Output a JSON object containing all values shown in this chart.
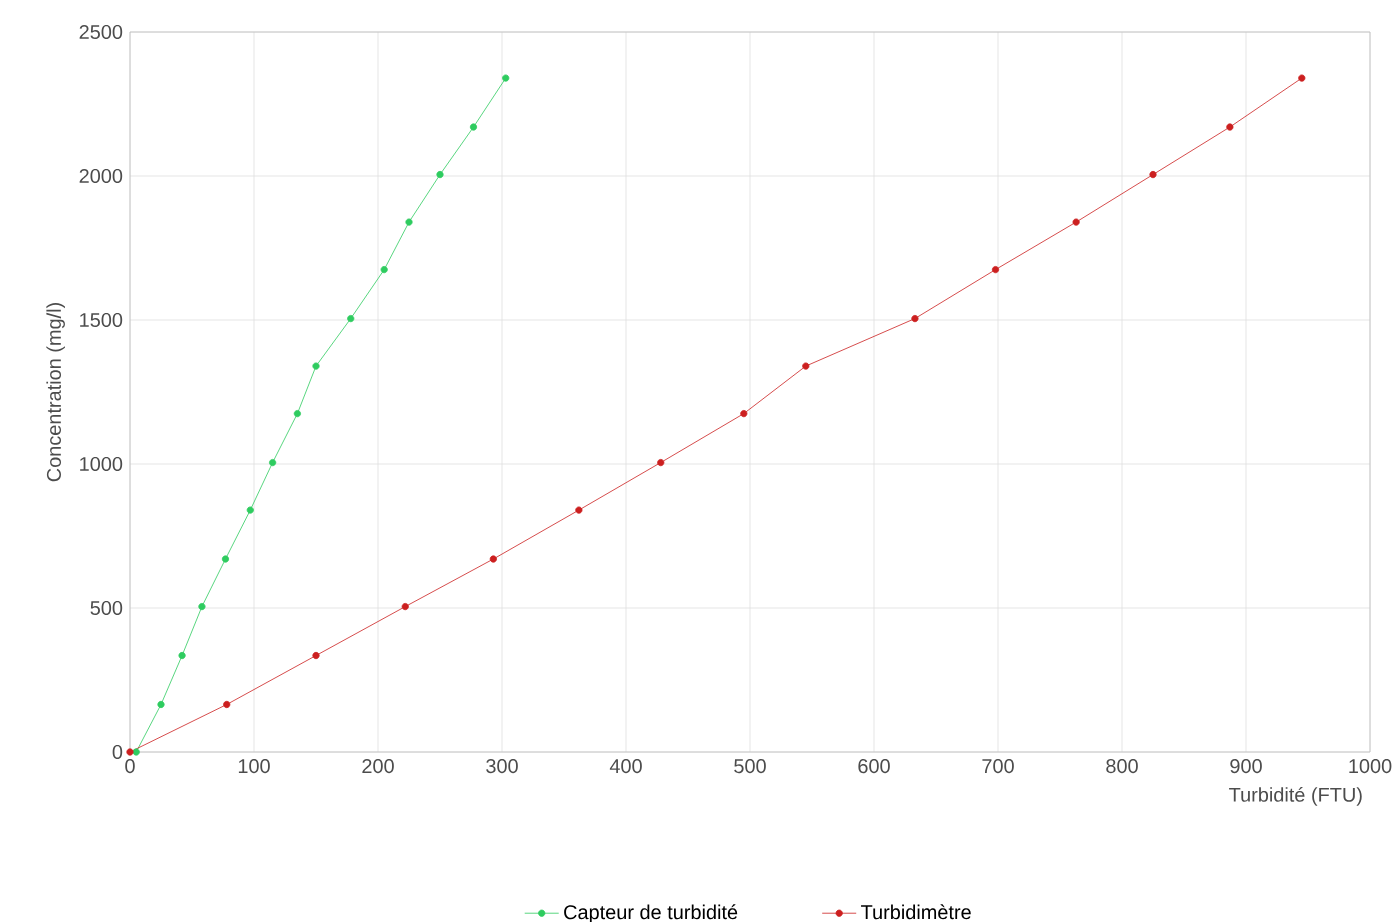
{
  "chart_data": {
    "type": "line",
    "xlabel": "Turbidité (FTU)",
    "ylabel": "Concentration (mg/l)",
    "xlim": [
      0,
      1000
    ],
    "xticks": [
      0,
      100,
      200,
      300,
      400,
      500,
      600,
      700,
      800,
      900,
      1000
    ],
    "ylim": [
      0,
      2500
    ],
    "yticks": [
      0,
      500,
      1000,
      1500,
      2000,
      2500
    ],
    "grid": true,
    "legend": "bottom",
    "marker": "circle",
    "line_style": "solid",
    "series": [
      {
        "name": "Capteur de turbidité",
        "color": "#2ecc5f",
        "x": [
          5,
          25,
          42,
          58,
          77,
          97,
          115,
          135,
          150,
          178,
          205,
          225,
          250,
          277,
          303
        ],
        "values": [
          0,
          165,
          335,
          505,
          670,
          840,
          1005,
          1175,
          1340,
          1505,
          1675,
          1840,
          2005,
          2170,
          2340
        ]
      },
      {
        "name": "Turbidimètre",
        "color": "#cc1f1f",
        "x": [
          0,
          78,
          150,
          222,
          293,
          362,
          428,
          495,
          545,
          633,
          698,
          763,
          825,
          887,
          945
        ],
        "values": [
          0,
          165,
          335,
          505,
          670,
          840,
          1005,
          1175,
          1340,
          1505,
          1675,
          1840,
          2005,
          2170,
          2340
        ]
      }
    ]
  }
}
